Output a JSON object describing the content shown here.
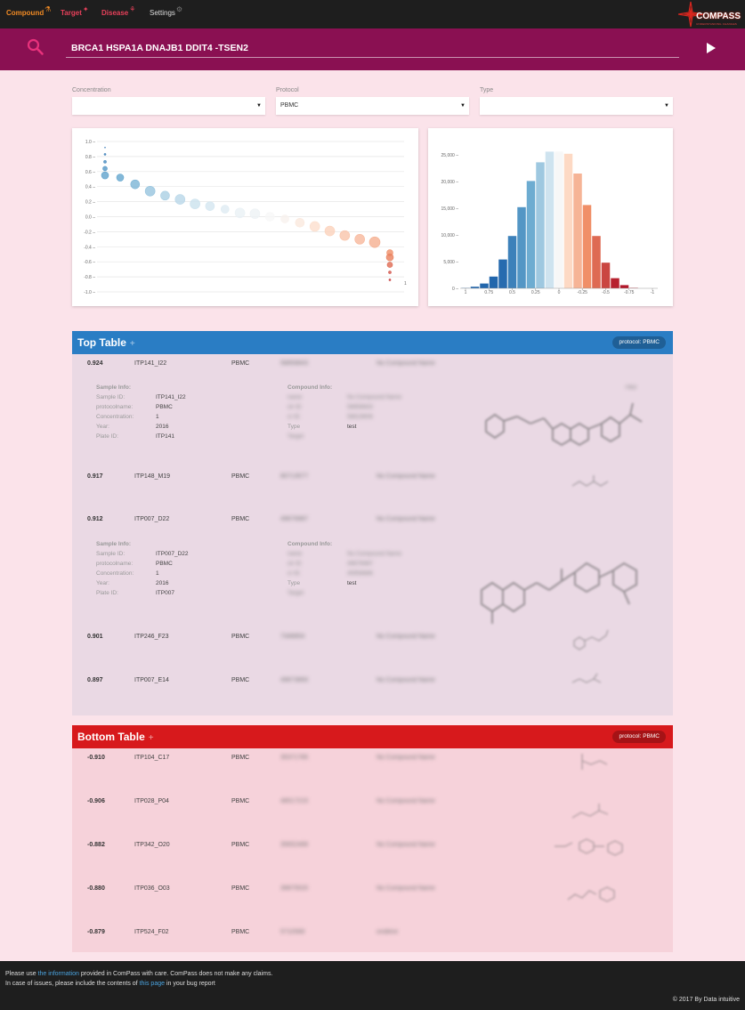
{
  "nav": {
    "items": [
      {
        "label": "Compound",
        "color": "#f08a24",
        "icon": "compound-icon",
        "glyph": "⚗"
      },
      {
        "label": "Target",
        "color": "#e6405a",
        "icon": "target-icon",
        "glyph": "✦"
      },
      {
        "label": "Disease",
        "color": "#e6405a",
        "icon": "disease-icon",
        "glyph": "⚘"
      },
      {
        "label": "Settings",
        "color": "#dddddd",
        "icon": "gear-icon",
        "glyph": "⚙"
      }
    ],
    "logo": "COMPASS",
    "logo_sub": "UNDERSTANDING CHANGES"
  },
  "search": {
    "query": "BRCA1 HSPA1A DNAJB1 DDIT4 -TSEN2"
  },
  "filters": [
    {
      "label": "Concentration",
      "value": ""
    },
    {
      "label": "Protocol",
      "value": "PBMC"
    },
    {
      "label": "Type",
      "value": ""
    }
  ],
  "chart_data": [
    {
      "type": "scatter",
      "y_ticks": [
        "1.0",
        "0.8",
        "0.6",
        "0.4",
        "0.2",
        "0.0",
        "-0.2",
        "-0.4",
        "-0.6",
        "-0.8",
        "-1.0"
      ],
      "ylim": [
        -1.0,
        1.0
      ],
      "grid": true,
      "points": [
        {
          "y": 0.92,
          "r": 0.5
        },
        {
          "y": 0.83,
          "r": 1
        },
        {
          "y": 0.73,
          "r": 1.5
        },
        {
          "y": 0.64,
          "r": 2.5
        },
        {
          "y": 0.55,
          "r": 4
        },
        {
          "y": 0.52,
          "r": 4
        },
        {
          "y": 0.43,
          "r": 5
        },
        {
          "y": 0.34,
          "r": 5.5
        },
        {
          "y": 0.28,
          "r": 5
        },
        {
          "y": 0.23,
          "r": 5.5
        },
        {
          "y": 0.17,
          "r": 5.5
        },
        {
          "y": 0.14,
          "r": 5
        },
        {
          "y": 0.1,
          "r": 4.5
        },
        {
          "y": 0.05,
          "r": 5.5
        },
        {
          "y": 0.04,
          "r": 5.5
        },
        {
          "y": 0.0,
          "r": 5
        },
        {
          "y": -0.03,
          "r": 4.5
        },
        {
          "y": -0.08,
          "r": 5
        },
        {
          "y": -0.13,
          "r": 5.5
        },
        {
          "y": -0.19,
          "r": 5.5
        },
        {
          "y": -0.25,
          "r": 5.5
        },
        {
          "y": -0.3,
          "r": 5.5
        },
        {
          "y": -0.34,
          "r": 6
        },
        {
          "y": -0.48,
          "r": 3.5
        },
        {
          "y": -0.54,
          "r": 4
        },
        {
          "y": -0.64,
          "r": 3
        },
        {
          "y": -0.74,
          "r": 1.5
        },
        {
          "y": -0.84,
          "r": 1
        }
      ],
      "x_label_end": "1"
    },
    {
      "type": "bar",
      "categories": [
        "1",
        "0.75",
        "0.5",
        "0.25",
        "0",
        "-0.25",
        "-0.5",
        "-0.75",
        "-1"
      ],
      "y_ticks": [
        "25,000",
        "20,000",
        "15,000",
        "10,000",
        "5,000",
        "0"
      ],
      "ylim": [
        0,
        27500
      ],
      "bins": [
        {
          "x": 1.0,
          "value": 60
        },
        {
          "x": 0.9,
          "value": 300
        },
        {
          "x": 0.8,
          "value": 900
        },
        {
          "x": 0.7,
          "value": 2200
        },
        {
          "x": 0.6,
          "value": 5400
        },
        {
          "x": 0.5,
          "value": 9800
        },
        {
          "x": 0.4,
          "value": 15200
        },
        {
          "x": 0.3,
          "value": 20100
        },
        {
          "x": 0.2,
          "value": 23600
        },
        {
          "x": 0.1,
          "value": 25600
        },
        {
          "x": 0.0,
          "value": 25600
        },
        {
          "x": -0.1,
          "value": 25200
        },
        {
          "x": -0.2,
          "value": 21500
        },
        {
          "x": -0.3,
          "value": 15600
        },
        {
          "x": -0.4,
          "value": 9800
        },
        {
          "x": -0.5,
          "value": 4800
        },
        {
          "x": -0.6,
          "value": 1900
        },
        {
          "x": -0.7,
          "value": 600
        },
        {
          "x": -0.8,
          "value": 80
        }
      ]
    }
  ],
  "top_table": {
    "title": "Top Table",
    "plus": "+",
    "badge": "protocol: PBMC",
    "header_color": "#2a7dc4",
    "rows": [
      {
        "score": "0.924",
        "sample": "ITP141_I22",
        "protocol": "PBMC",
        "cid": "58858843",
        "cname": "No Compound Name"
      },
      {
        "score": "0.917",
        "sample": "ITP148_M19",
        "protocol": "PBMC",
        "cid": "80713577",
        "cname": "No Compound Name"
      },
      {
        "score": "0.912",
        "sample": "ITP007_D22",
        "protocol": "PBMC",
        "cid": "49676987",
        "cname": "No Compound Name"
      },
      {
        "score": "0.901",
        "sample": "ITP246_F23",
        "protocol": "PBMC",
        "cid": "7348854",
        "cname": "No Compound Name"
      },
      {
        "score": "0.897",
        "sample": "ITP007_E14",
        "protocol": "PBMC",
        "cid": "49673893",
        "cname": "No Compound Name"
      }
    ],
    "details": [
      {
        "sample_header": "Sample Info:",
        "compound_header": "Compound Info:",
        "sample_keys": [
          "Sample ID:",
          "protocolname:",
          "Concentration:",
          "Year:",
          "Plate ID:"
        ],
        "sample_values": [
          "ITP141_I22",
          "PBMC",
          "1",
          "2016",
          "ITP141"
        ],
        "compound_keys": [
          "name",
          "ctr ID",
          "cr ID",
          "Type",
          "Target"
        ],
        "compound_values": [
          "No Compound Name",
          "58858843",
          "58619606",
          "test",
          ""
        ],
        "tag": "Hbd"
      },
      {
        "sample_header": "Sample Info:",
        "compound_header": "Compound Info:",
        "sample_keys": [
          "Sample ID:",
          "protocolname:",
          "Concentration:",
          "Year:",
          "Plate ID:"
        ],
        "sample_values": [
          "ITP007_D22",
          "PBMC",
          "1",
          "2016",
          "ITP007"
        ],
        "compound_keys": [
          "name",
          "ctr ID",
          "cr ID",
          "Type",
          "Target"
        ],
        "compound_values": [
          "No Compound Name",
          "49676987",
          "45958866",
          "test",
          ""
        ],
        "tag": ""
      }
    ]
  },
  "bottom_table": {
    "title": "Bottom Table",
    "plus": "+",
    "badge": "protocol: PBMC",
    "header_color": "#d7191c",
    "rows": [
      {
        "score": "-0.910",
        "sample": "ITP104_C17",
        "protocol": "PBMC",
        "cid": "35371785",
        "cname": "No Compound Name"
      },
      {
        "score": "-0.906",
        "sample": "ITP028_P04",
        "protocol": "PBMC",
        "cid": "48517215",
        "cname": "No Compound Name"
      },
      {
        "score": "-0.882",
        "sample": "ITP342_O20",
        "protocol": "PBMC",
        "cid": "35652489",
        "cname": "No Compound Name"
      },
      {
        "score": "-0.880",
        "sample": "ITP036_O03",
        "protocol": "PBMC",
        "cid": "39875520",
        "cname": "No Compound Name"
      },
      {
        "score": "-0.879",
        "sample": "ITP524_F02",
        "protocol": "PBMC",
        "cid": "5710568",
        "cname": "ondiline"
      }
    ]
  },
  "footer": {
    "line1_a": "Please use ",
    "line1_link": "the information",
    "line1_b": " provided in ComPass with care. ComPass does not make any claims.",
    "line2_a": "In case of issues, please include the contents of ",
    "line2_link": "this page",
    "line2_b": " in your bug report",
    "copyright": "© 2017 By Data intuitive"
  }
}
